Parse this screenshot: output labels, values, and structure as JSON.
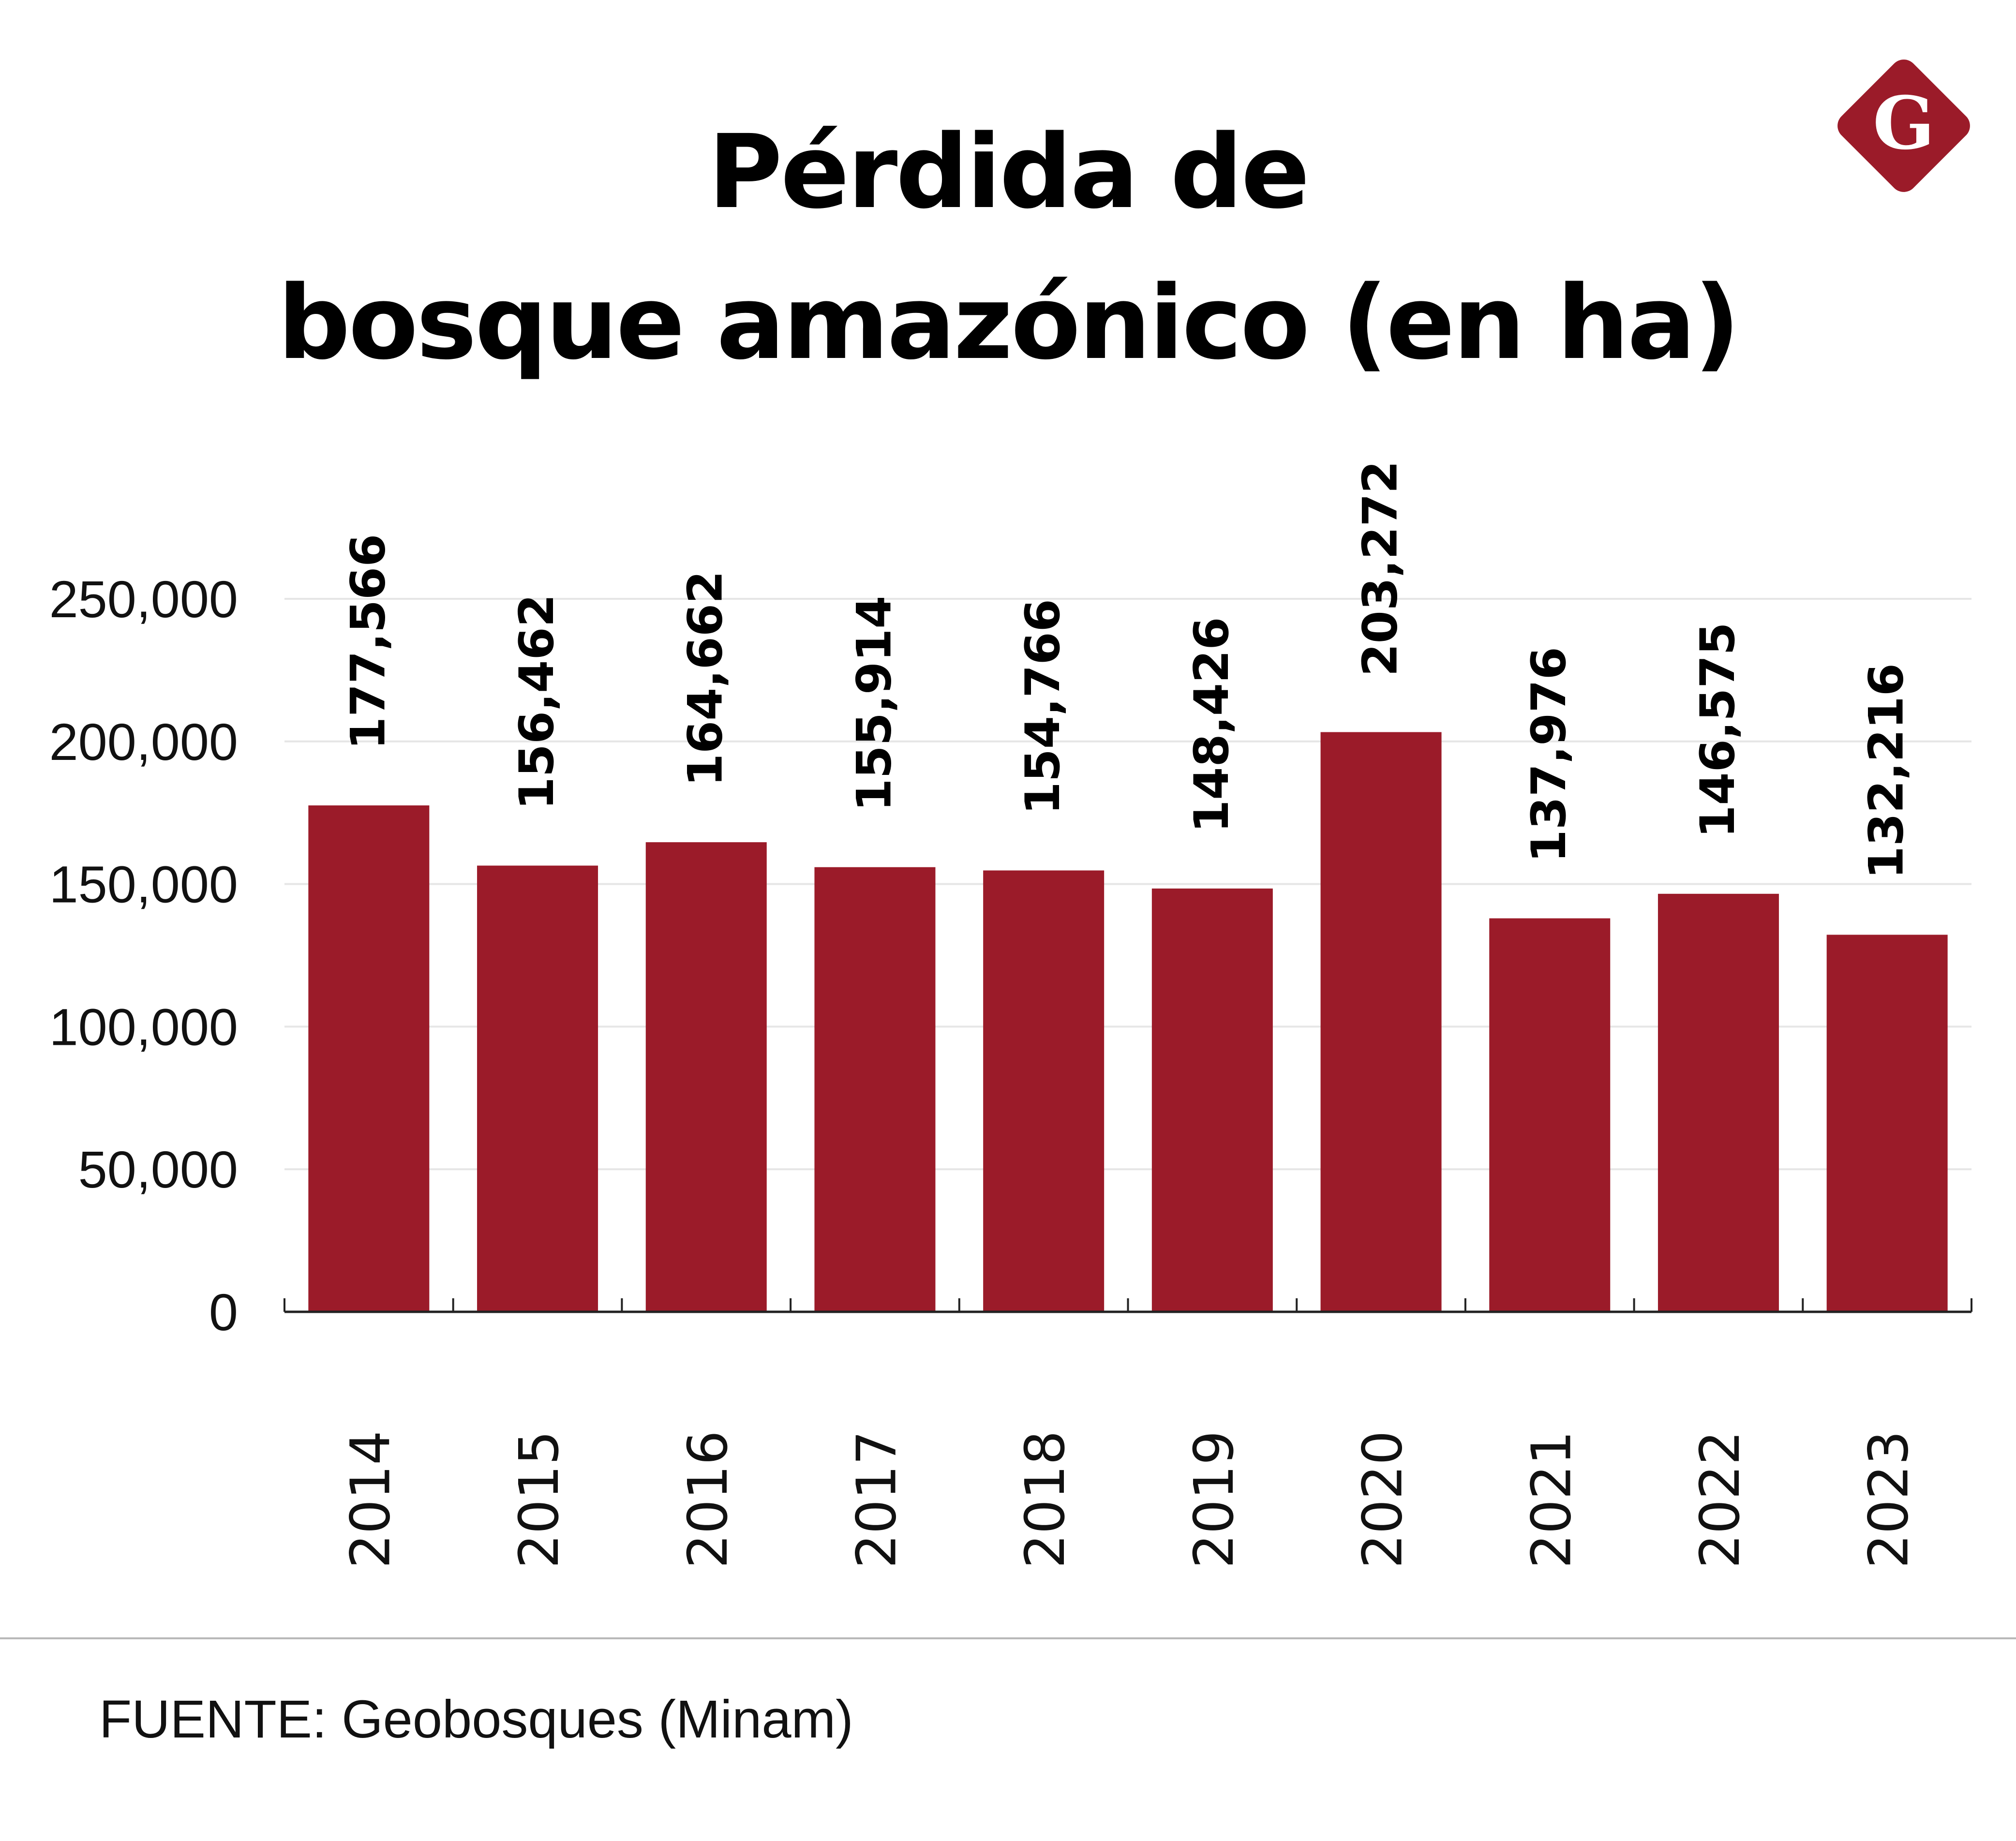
{
  "header": {
    "title_line1": "Pérdida de",
    "title_line2": "bosque amazónico (en ha)"
  },
  "logo": {
    "icon": "brand-diamond-logo-icon",
    "letter": "G",
    "color": "#9b1b29"
  },
  "chart_data": {
    "type": "bar",
    "title": "Pérdida de bosque amazónico (en ha)",
    "categories": [
      "2014",
      "2015",
      "2016",
      "2017",
      "2018",
      "2019",
      "2020",
      "2021",
      "2022",
      "2023"
    ],
    "values": [
      177566,
      156462,
      164662,
      155914,
      154766,
      148426,
      203272,
      137976,
      146575,
      132216
    ],
    "value_labels": [
      "177,566",
      "156,462",
      "164,662",
      "155,914",
      "154,766",
      "148,426",
      "203,272",
      "137,976",
      "146,575",
      "132,216"
    ],
    "xlabel": "",
    "ylabel": "",
    "ylim": [
      0,
      250000
    ],
    "yticks": [
      0,
      50000,
      100000,
      150000,
      200000,
      250000
    ],
    "ytick_labels": [
      "0",
      "50,000",
      "100,000",
      "150,000",
      "200,000",
      "250,000"
    ],
    "grid": true,
    "legend": "none",
    "bar_color": "#9b1b29",
    "grid_color": "#e6e6e6"
  },
  "footer": {
    "source": "FUENTE: Geobosques (Minam)"
  }
}
